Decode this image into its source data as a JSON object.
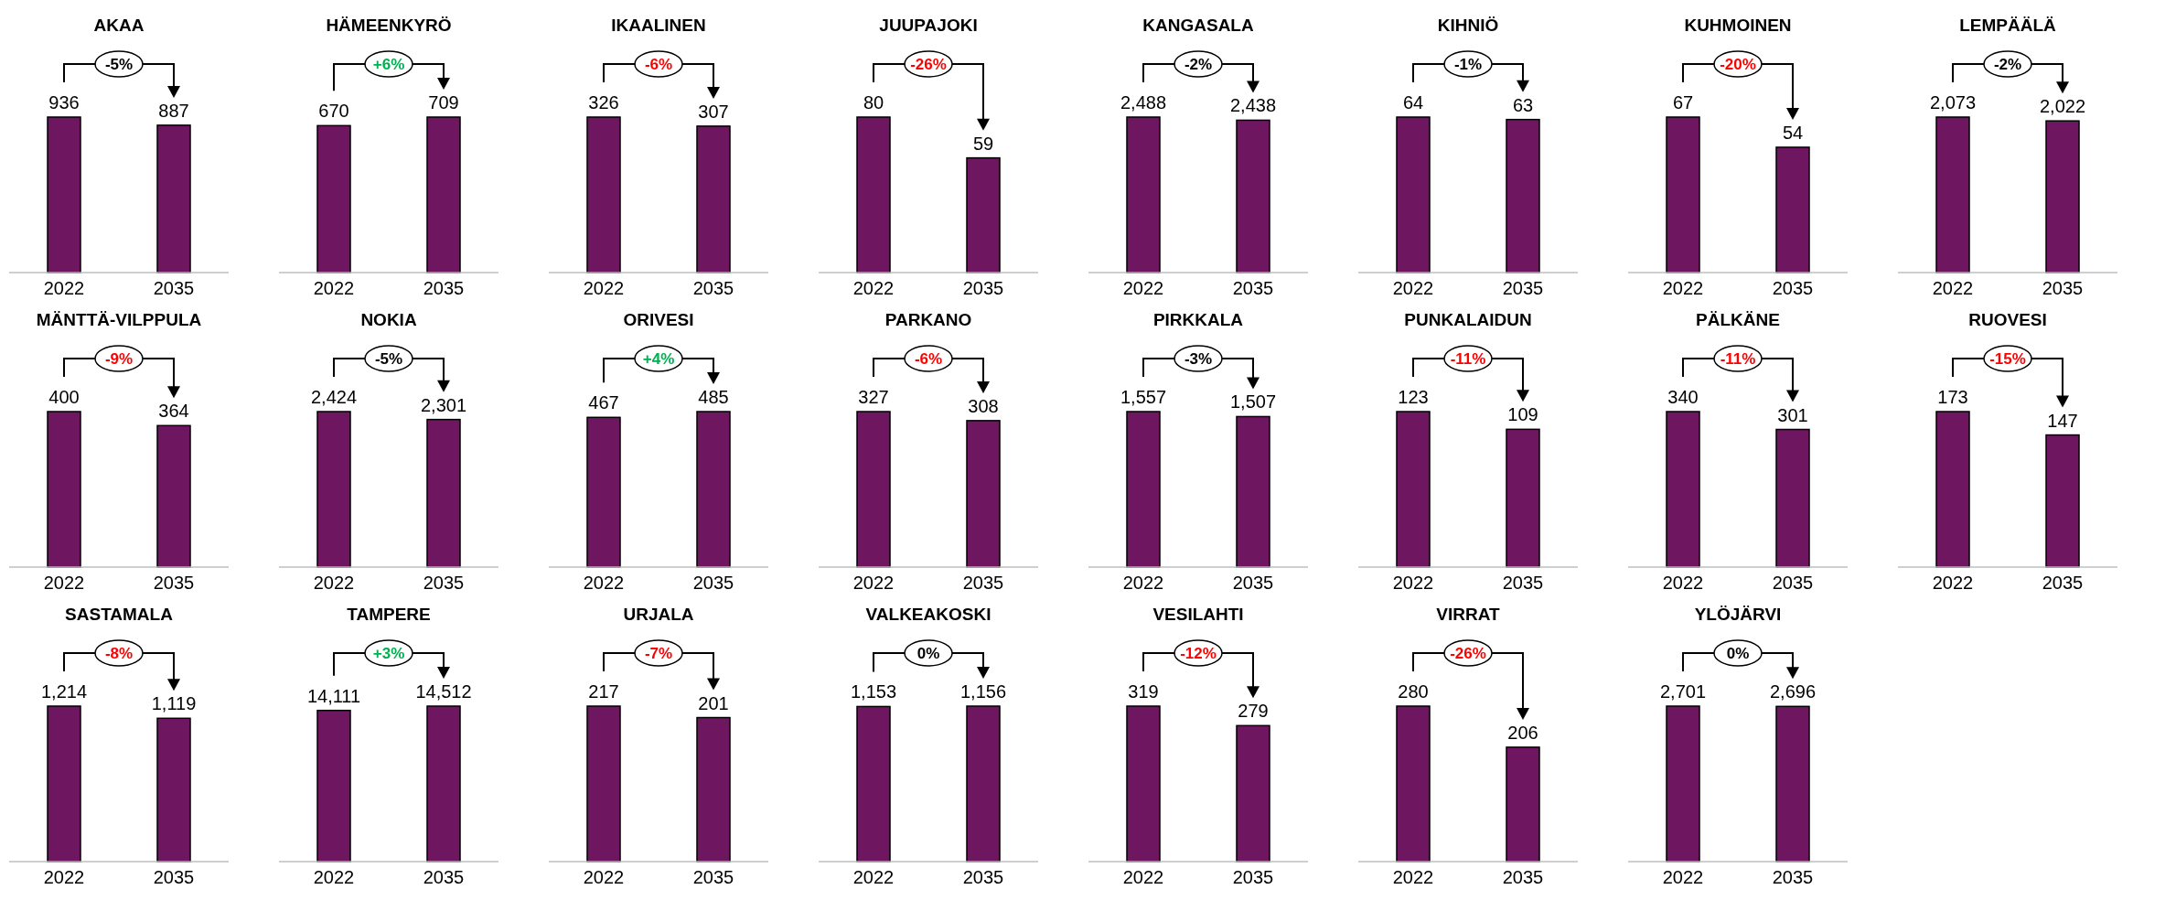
{
  "chart_data": [
    {
      "type": "bar",
      "title": "AKAA",
      "categories": [
        "2022",
        "2035"
      ],
      "values": [
        936,
        887
      ],
      "color": "#6f1661",
      "value_labels": [
        "936",
        "887"
      ],
      "annotations": [
        "-5%"
      ]
    },
    {
      "type": "bar",
      "title": "HÄMEENKYRÖ",
      "categories": [
        "2022",
        "2035"
      ],
      "values": [
        670,
        709
      ],
      "color": "#6f1661",
      "value_labels": [
        "670",
        "709"
      ],
      "annotations": [
        "+6%"
      ]
    },
    {
      "type": "bar",
      "title": "IKAALINEN",
      "categories": [
        "2022",
        "2035"
      ],
      "values": [
        326,
        307
      ],
      "color": "#6f1661",
      "value_labels": [
        "326",
        "307"
      ],
      "annotations": [
        "-6%"
      ]
    },
    {
      "type": "bar",
      "title": "JUUPAJOKI",
      "categories": [
        "2022",
        "2035"
      ],
      "values": [
        80,
        59
      ],
      "color": "#6f1661",
      "value_labels": [
        "80",
        "59"
      ],
      "annotations": [
        "-26%"
      ]
    },
    {
      "type": "bar",
      "title": "KANGASALA",
      "categories": [
        "2022",
        "2035"
      ],
      "values": [
        2488,
        2438
      ],
      "color": "#6f1661",
      "value_labels": [
        "2,488",
        "2,438"
      ],
      "annotations": [
        "-2%"
      ]
    },
    {
      "type": "bar",
      "title": "KIHNIÖ",
      "categories": [
        "2022",
        "2035"
      ],
      "values": [
        64,
        63
      ],
      "color": "#6f1661",
      "value_labels": [
        "64",
        "63"
      ],
      "annotations": [
        "-1%"
      ]
    },
    {
      "type": "bar",
      "title": "KUHMOINEN",
      "categories": [
        "2022",
        "2035"
      ],
      "values": [
        67,
        54
      ],
      "color": "#6f1661",
      "value_labels": [
        "67",
        "54"
      ],
      "annotations": [
        "-20%"
      ]
    },
    {
      "type": "bar",
      "title": "LEMPÄÄLÄ",
      "categories": [
        "2022",
        "2035"
      ],
      "values": [
        2073,
        2022
      ],
      "color": "#6f1661",
      "value_labels": [
        "2,073",
        "2,022"
      ],
      "annotations": [
        "-2%"
      ]
    },
    {
      "type": "bar",
      "title": "MÄNTTÄ-VILPPULA",
      "categories": [
        "2022",
        "2035"
      ],
      "values": [
        400,
        364
      ],
      "color": "#6f1661",
      "value_labels": [
        "400",
        "364"
      ],
      "annotations": [
        "-9%"
      ]
    },
    {
      "type": "bar",
      "title": "NOKIA",
      "categories": [
        "2022",
        "2035"
      ],
      "values": [
        2424,
        2301
      ],
      "color": "#6f1661",
      "value_labels": [
        "2,424",
        "2,301"
      ],
      "annotations": [
        "-5%"
      ]
    },
    {
      "type": "bar",
      "title": "ORIVESI",
      "categories": [
        "2022",
        "2035"
      ],
      "values": [
        467,
        485
      ],
      "color": "#6f1661",
      "value_labels": [
        "467",
        "485"
      ],
      "annotations": [
        "+4%"
      ]
    },
    {
      "type": "bar",
      "title": "PARKANO",
      "categories": [
        "2022",
        "2035"
      ],
      "values": [
        327,
        308
      ],
      "color": "#6f1661",
      "value_labels": [
        "327",
        "308"
      ],
      "annotations": [
        "-6%"
      ]
    },
    {
      "type": "bar",
      "title": "PIRKKALA",
      "categories": [
        "2022",
        "2035"
      ],
      "values": [
        1557,
        1507
      ],
      "color": "#6f1661",
      "value_labels": [
        "1,557",
        "1,507"
      ],
      "annotations": [
        "-3%"
      ]
    },
    {
      "type": "bar",
      "title": "PUNKALAIDUN",
      "categories": [
        "2022",
        "2035"
      ],
      "values": [
        123,
        109
      ],
      "color": "#6f1661",
      "value_labels": [
        "123",
        "109"
      ],
      "annotations": [
        "-11%"
      ]
    },
    {
      "type": "bar",
      "title": "PÄLKÄNE",
      "categories": [
        "2022",
        "2035"
      ],
      "values": [
        340,
        301
      ],
      "color": "#6f1661",
      "value_labels": [
        "340",
        "301"
      ],
      "annotations": [
        "-11%"
      ]
    },
    {
      "type": "bar",
      "title": "RUOVESI",
      "categories": [
        "2022",
        "2035"
      ],
      "values": [
        173,
        147
      ],
      "color": "#6f1661",
      "value_labels": [
        "173",
        "147"
      ],
      "annotations": [
        "-15%"
      ]
    },
    {
      "type": "bar",
      "title": "SASTAMALA",
      "categories": [
        "2022",
        "2035"
      ],
      "values": [
        1214,
        1119
      ],
      "color": "#6f1661",
      "value_labels": [
        "1,214",
        "1,119"
      ],
      "annotations": [
        "-8%"
      ]
    },
    {
      "type": "bar",
      "title": "TAMPERE",
      "categories": [
        "2022",
        "2035"
      ],
      "values": [
        14111,
        14512
      ],
      "color": "#6f1661",
      "value_labels": [
        "14,111",
        "14,512"
      ],
      "annotations": [
        "+3%"
      ]
    },
    {
      "type": "bar",
      "title": "URJALA",
      "categories": [
        "2022",
        "2035"
      ],
      "values": [
        217,
        201
      ],
      "color": "#6f1661",
      "value_labels": [
        "217",
        "201"
      ],
      "annotations": [
        "-7%"
      ]
    },
    {
      "type": "bar",
      "title": "VALKEAKOSKI",
      "categories": [
        "2022",
        "2035"
      ],
      "values": [
        1153,
        1156
      ],
      "color": "#6f1661",
      "value_labels": [
        "1,153",
        "1,156"
      ],
      "annotations": [
        "0%"
      ]
    },
    {
      "type": "bar",
      "title": "VESILAHTI",
      "categories": [
        "2022",
        "2035"
      ],
      "values": [
        319,
        279
      ],
      "color": "#6f1661",
      "value_labels": [
        "319",
        "279"
      ],
      "annotations": [
        "-12%"
      ]
    },
    {
      "type": "bar",
      "title": "VIRRAT",
      "categories": [
        "2022",
        "2035"
      ],
      "values": [
        280,
        206
      ],
      "color": "#6f1661",
      "value_labels": [
        "280",
        "206"
      ],
      "annotations": [
        "-26%"
      ]
    },
    {
      "type": "bar",
      "title": "YLÖJÄRVI",
      "categories": [
        "2022",
        "2035"
      ],
      "values": [
        2701,
        2696
      ],
      "color": "#6f1661",
      "value_labels": [
        "2,701",
        "2,696"
      ],
      "annotations": [
        "0%"
      ]
    }
  ]
}
